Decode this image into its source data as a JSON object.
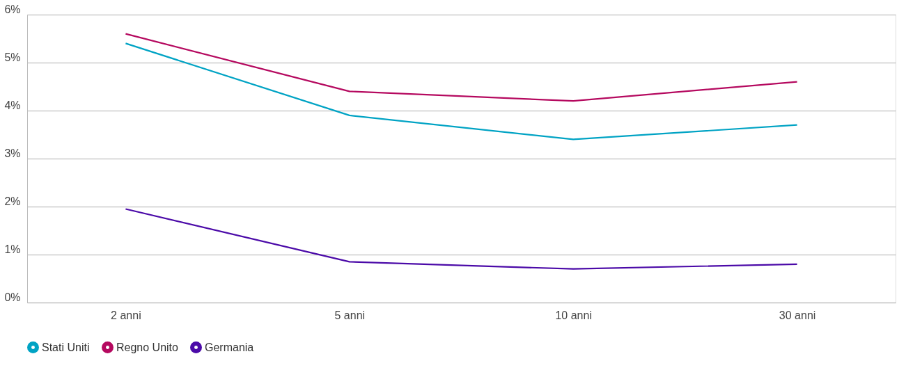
{
  "chart_data": {
    "type": "line",
    "categories": [
      "2 anni",
      "5 anni",
      "10 anni",
      "30 anni"
    ],
    "series": [
      {
        "name": "Stati Uniti",
        "color": "#00a3c4",
        "values": [
          5.4,
          3.9,
          3.4,
          3.7
        ]
      },
      {
        "name": "Regno Unito",
        "color": "#b5095f",
        "values": [
          5.6,
          4.4,
          4.2,
          4.6
        ]
      },
      {
        "name": "Germania",
        "color": "#4b0aa8",
        "values": [
          1.95,
          0.85,
          0.7,
          0.8
        ]
      }
    ],
    "ylim": [
      0,
      6
    ],
    "yticks": [
      {
        "value": 0,
        "label": "0%"
      },
      {
        "value": 1,
        "label": "1%"
      },
      {
        "value": 2,
        "label": "2%"
      },
      {
        "value": 3,
        "label": "3%"
      },
      {
        "value": 4,
        "label": "4%"
      },
      {
        "value": 5,
        "label": "5%"
      },
      {
        "value": 6,
        "label": "6%"
      }
    ],
    "grid": "y",
    "legend": "bottom",
    "marker": "none",
    "line_style": "solid"
  }
}
